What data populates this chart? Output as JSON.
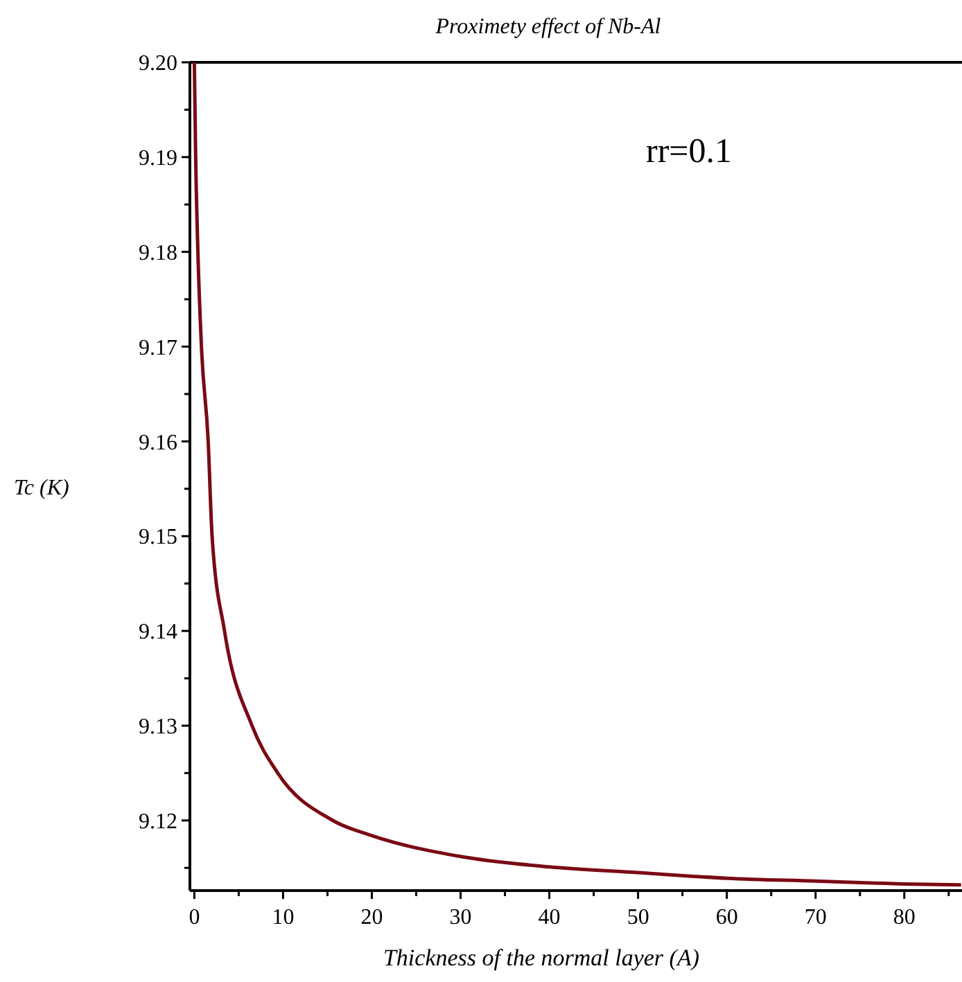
{
  "chart_data": {
    "type": "line",
    "title": "Proximety effect of Nb-Al",
    "xlabel": "Thickness of the normal layer (A)",
    "ylabel": "Tc (K)",
    "annotations": [
      "rr=0.1"
    ],
    "xlim": [
      -0.5,
      86.5
    ],
    "ylim": [
      9.1126,
      9.2
    ],
    "xticks": [
      0,
      {
        "value": 5,
        "label": null
      },
      10,
      {
        "value": 15,
        "label": null
      },
      20,
      {
        "value": 25,
        "label": null
      },
      30,
      {
        "value": 35,
        "label": null
      },
      40,
      {
        "value": 45,
        "label": null
      },
      50,
      {
        "value": 55,
        "label": null
      },
      60,
      {
        "value": 65,
        "label": null
      },
      70,
      {
        "value": 75,
        "label": null
      },
      80,
      {
        "value": 85,
        "label": null
      }
    ],
    "yticks": [
      {
        "value": 9.115,
        "label": null
      },
      9.12,
      {
        "value": 9.125,
        "label": null
      },
      9.13,
      {
        "value": 9.135,
        "label": null
      },
      9.14,
      {
        "value": 9.145,
        "label": null
      },
      9.15,
      {
        "value": 9.155,
        "label": null
      },
      9.16,
      {
        "value": 9.165,
        "label": null
      },
      9.17,
      {
        "value": 9.175,
        "label": null
      },
      9.18,
      {
        "value": 9.185,
        "label": null
      },
      9.19,
      {
        "value": 9.195,
        "label": null
      },
      {
        "value": 9.2,
        "label": "9.20"
      }
    ],
    "grid": false,
    "marker": "none",
    "line_style": "solid",
    "series": [
      {
        "color": "#7a0a14",
        "x": [
          0,
          0.15,
          0.4,
          0.8,
          1.56,
          2.0,
          3.4,
          6.5,
          9.4,
          15.6,
          20,
          30,
          40,
          50,
          60,
          70,
          80,
          86.4
        ],
        "values": [
          9.2,
          9.19,
          9.18,
          9.17,
          9.16,
          9.15,
          9.14,
          9.13,
          9.125,
          9.12,
          9.1184,
          9.1162,
          9.1151,
          9.1145,
          9.1139,
          9.1136,
          9.1133,
          9.1132
        ]
      }
    ]
  }
}
